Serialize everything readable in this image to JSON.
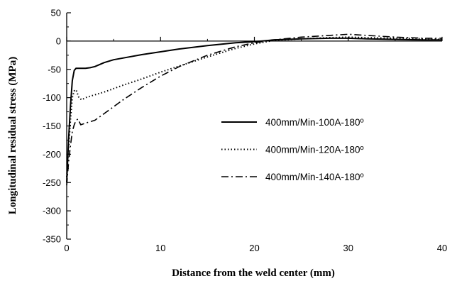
{
  "chart_data": {
    "type": "line",
    "xlabel": "Distance from the weld center  (mm)",
    "ylabel": "Longitudinal residual stress  (MPa)",
    "xlim": [
      0,
      40
    ],
    "ylim": [
      -350,
      50
    ],
    "xticks": [
      0,
      10,
      20,
      30,
      40
    ],
    "yticks": [
      50,
      0,
      -50,
      -100,
      -150,
      -200,
      -250,
      -300,
      -350
    ],
    "grid": false,
    "legend_position": "center-right",
    "series": [
      {
        "name": "400mm/Min-100A-180º",
        "style": "solid",
        "color": "#000000",
        "x": [
          0,
          0.2,
          0.4,
          0.6,
          0.8,
          1.0,
          1.5,
          2.0,
          2.5,
          3,
          4,
          5,
          6,
          8,
          10,
          12,
          15,
          18,
          20,
          22,
          25,
          28,
          30,
          32,
          35,
          38,
          40
        ],
        "y": [
          -250,
          -175,
          -115,
          -70,
          -52,
          -48,
          -48,
          -48,
          -47,
          -45,
          -38,
          -33,
          -30,
          -24,
          -19,
          -14,
          -8,
          -3,
          -1,
          2,
          4,
          5,
          5,
          4,
          3,
          2,
          2
        ]
      },
      {
        "name": "400mm/Min-120A-180º",
        "style": "dotted",
        "color": "#000000",
        "x": [
          0,
          0.2,
          0.4,
          0.6,
          0.8,
          1.0,
          1.3,
          1.6,
          2,
          3,
          4,
          5,
          6,
          8,
          10,
          12,
          15,
          18,
          20,
          22,
          25,
          28,
          30,
          32,
          35,
          38,
          40
        ],
        "y": [
          -240,
          -190,
          -140,
          -100,
          -88,
          -86,
          -100,
          -104,
          -100,
          -95,
          -90,
          -84,
          -78,
          -67,
          -55,
          -44,
          -28,
          -13,
          -5,
          1,
          4,
          6,
          7,
          6,
          5,
          4,
          3
        ]
      },
      {
        "name": "400mm/Min-140A-180º",
        "style": "dash-dot",
        "color": "#000000",
        "x": [
          0,
          0.2,
          0.4,
          0.6,
          0.8,
          1.0,
          1.2,
          1.5,
          2,
          3,
          4,
          5,
          6,
          8,
          10,
          12,
          15,
          18,
          20,
          22,
          25,
          28,
          30,
          32,
          35,
          38,
          40
        ],
        "y": [
          -255,
          -215,
          -185,
          -160,
          -148,
          -140,
          -138,
          -148,
          -145,
          -140,
          -128,
          -116,
          -104,
          -82,
          -62,
          -45,
          -25,
          -10,
          -3,
          2,
          7,
          10,
          12,
          10,
          7,
          5,
          5
        ]
      }
    ]
  }
}
